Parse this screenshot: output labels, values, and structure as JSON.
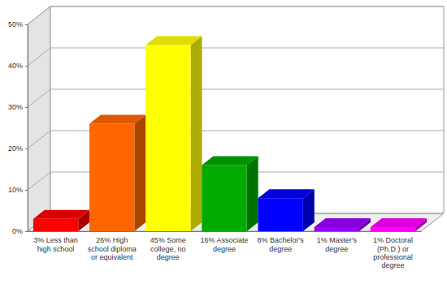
{
  "chart_data": {
    "type": "bar",
    "categories": [
      "3% Less than high school",
      "26% High school diploma or equivalent",
      "45% Some college, no degree",
      "16% Associate degree",
      "8% Bachelor's degree",
      "1% Master's degree",
      "1% Doctoral (Ph.D.) or professional degree"
    ],
    "values": [
      3,
      26,
      45,
      16,
      8,
      1,
      1
    ],
    "colors": [
      "#ff0000",
      "#ff6600",
      "#ffff00",
      "#00aa00",
      "#0000ff",
      "#9900ff",
      "#ff00ff"
    ],
    "ylim": [
      0,
      50
    ],
    "yticks": [
      {
        "value": 0,
        "label": "0%"
      },
      {
        "value": 10,
        "label": "10%"
      },
      {
        "value": 20,
        "label": "20%"
      },
      {
        "value": 30,
        "label": "30%"
      },
      {
        "value": 40,
        "label": "40%"
      },
      {
        "value": 50,
        "label": "50%"
      }
    ],
    "grid": true
  }
}
